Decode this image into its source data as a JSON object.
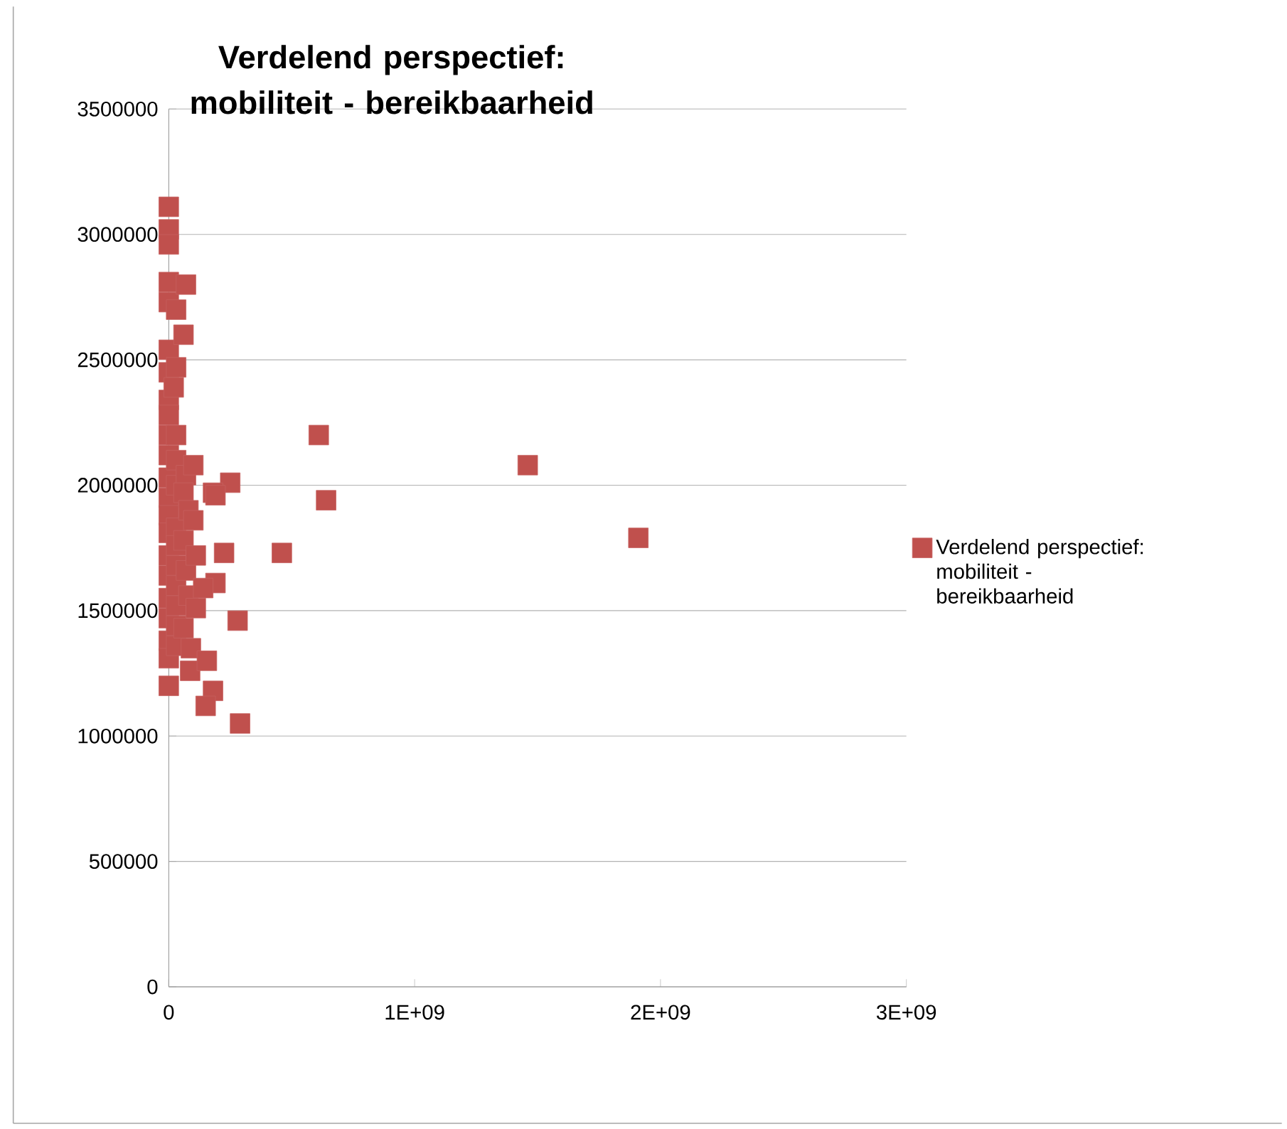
{
  "chart_data": {
    "type": "scatter",
    "title": "Verdelend perspectief: mobiliteit - bereikbaarheid",
    "xlim": [
      0,
      3000000000
    ],
    "ylim": [
      0,
      3500000
    ],
    "xticks": [
      0,
      {
        "value": 1000000000,
        "label": "1E+09"
      },
      {
        "value": 2000000000,
        "label": "2E+09"
      },
      {
        "value": 3000000000,
        "label": "3E+09"
      }
    ],
    "yticks": [
      0,
      500000,
      1000000,
      1500000,
      2000000,
      2500000,
      3000000,
      3500000
    ],
    "grid": "y",
    "legend": "right",
    "marker": "square",
    "series": [
      {
        "name": "Verdelend perspectief: mobiliteit - bereikbaarheid",
        "color": "#c0504d",
        "x": [
          0,
          0,
          0,
          0,
          0,
          0,
          0,
          0,
          0,
          0,
          0,
          0,
          0,
          0,
          0,
          0,
          0,
          0,
          0,
          0,
          0,
          0,
          30000000,
          30000000,
          20000000,
          30000000,
          30000000,
          30000000,
          30000000,
          30000000,
          30000000,
          30000000,
          30000000,
          30000000,
          30000000,
          70000000,
          60000000,
          70000000,
          60000000,
          80000000,
          60000000,
          70000000,
          80000000,
          60000000,
          90000000,
          87000000,
          610000000,
          100000000,
          1460000000,
          250000000,
          180000000,
          190000000,
          640000000,
          100000000,
          1910000000,
          225000000,
          460000000,
          110000000,
          190000000,
          140000000,
          110000000,
          280000000,
          155000000,
          180000000,
          150000000,
          290000000
        ],
        "values": [
          3110000,
          3020000,
          2960000,
          2810000,
          2730000,
          2540000,
          2450000,
          2340000,
          2280000,
          2200000,
          2120000,
          2030000,
          1950000,
          1880000,
          1810000,
          1720000,
          1640000,
          1550000,
          1470000,
          1380000,
          1310000,
          1200000,
          2700000,
          2470000,
          2390000,
          2200000,
          2100000,
          2000000,
          1830000,
          1760000,
          1680000,
          1600000,
          1520000,
          1440000,
          1360000,
          2800000,
          2600000,
          2040000,
          1970000,
          1900000,
          1780000,
          1660000,
          1560000,
          1430000,
          1350000,
          1260000,
          2200000,
          2080000,
          2080000,
          2010000,
          1970000,
          1960000,
          1940000,
          1860000,
          1790000,
          1730000,
          1730000,
          1720000,
          1610000,
          1590000,
          1510000,
          1460000,
          1300000,
          1180000,
          1120000,
          1050000
        ]
      }
    ]
  }
}
